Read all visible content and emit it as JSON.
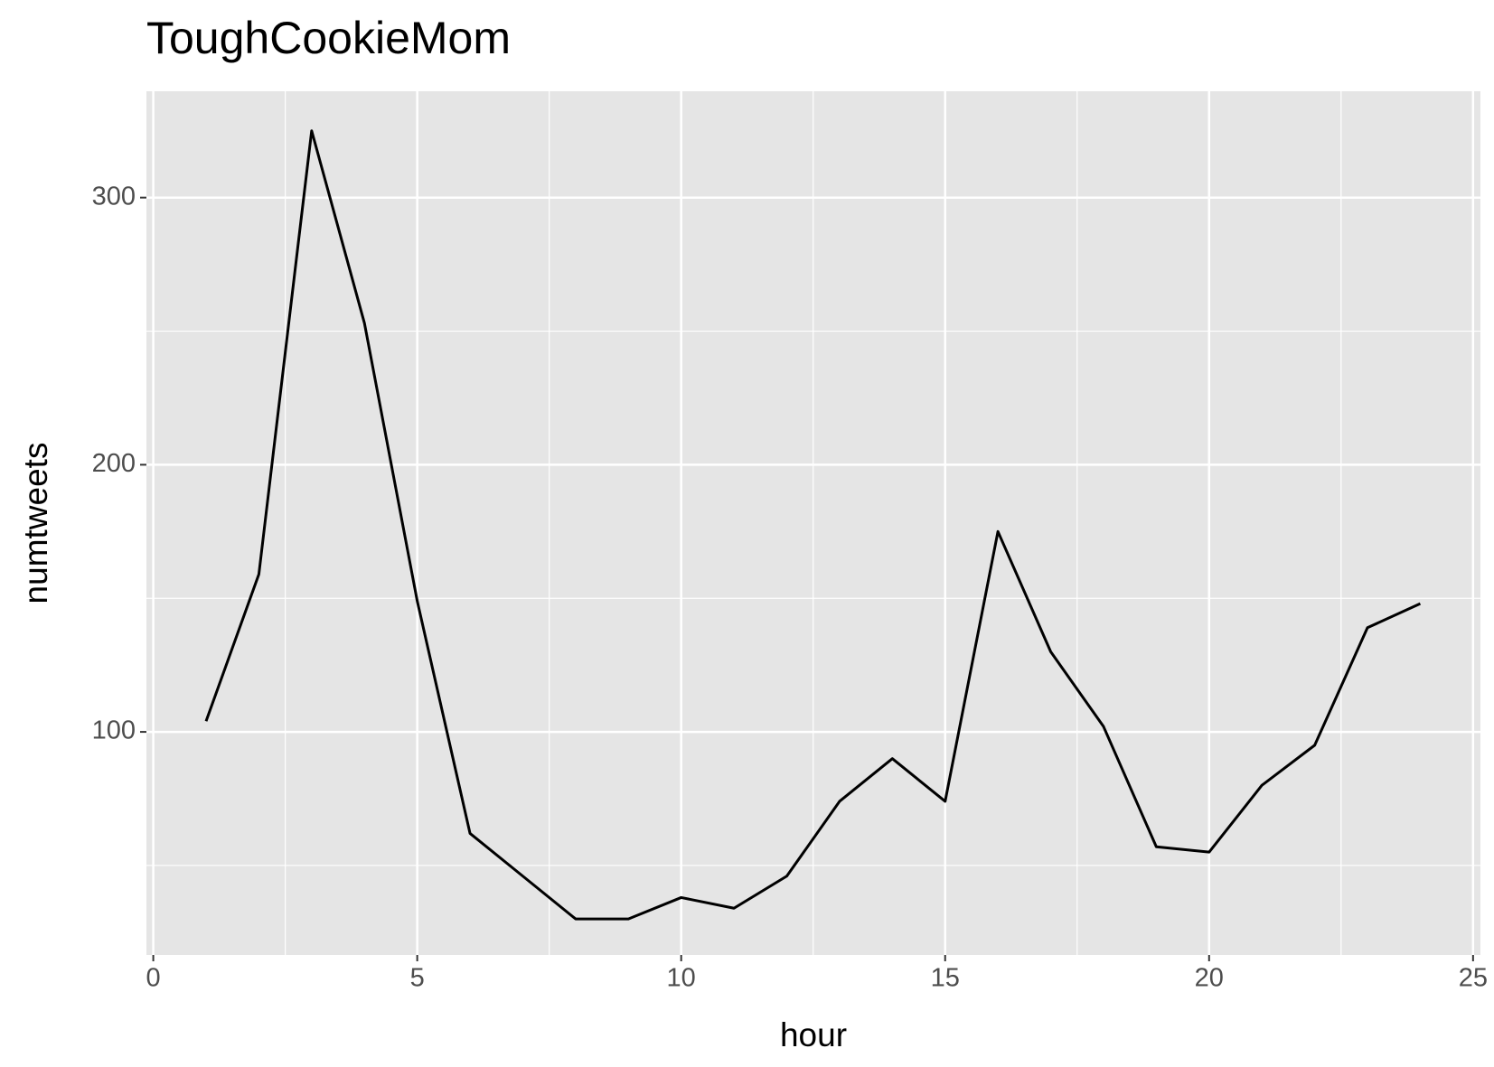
{
  "chart_data": {
    "type": "line",
    "title": "ToughCookieMom",
    "x_label": "hour",
    "y_label": "numtweets",
    "x": [
      1,
      2,
      3,
      4,
      5,
      6,
      7,
      8,
      9,
      10,
      11,
      12,
      13,
      14,
      15,
      16,
      17,
      18,
      19,
      20,
      21,
      22,
      23,
      24
    ],
    "series": [
      {
        "name": "numtweets",
        "color": "#000000",
        "values": [
          104,
          159,
          325,
          253,
          149,
          62,
          46,
          30,
          30,
          38,
          34,
          46,
          74,
          90,
          74,
          175,
          130,
          102,
          57,
          55,
          80,
          95,
          139,
          148
        ]
      }
    ],
    "xlim": [
      -0.13,
      25.14
    ],
    "xticks": [
      0,
      5,
      10,
      15,
      20,
      25
    ],
    "ylim": [
      16.5,
      339.8
    ],
    "yticks": [
      100,
      200,
      300
    ],
    "grid": true,
    "panel_color": "#e5e5e5"
  }
}
